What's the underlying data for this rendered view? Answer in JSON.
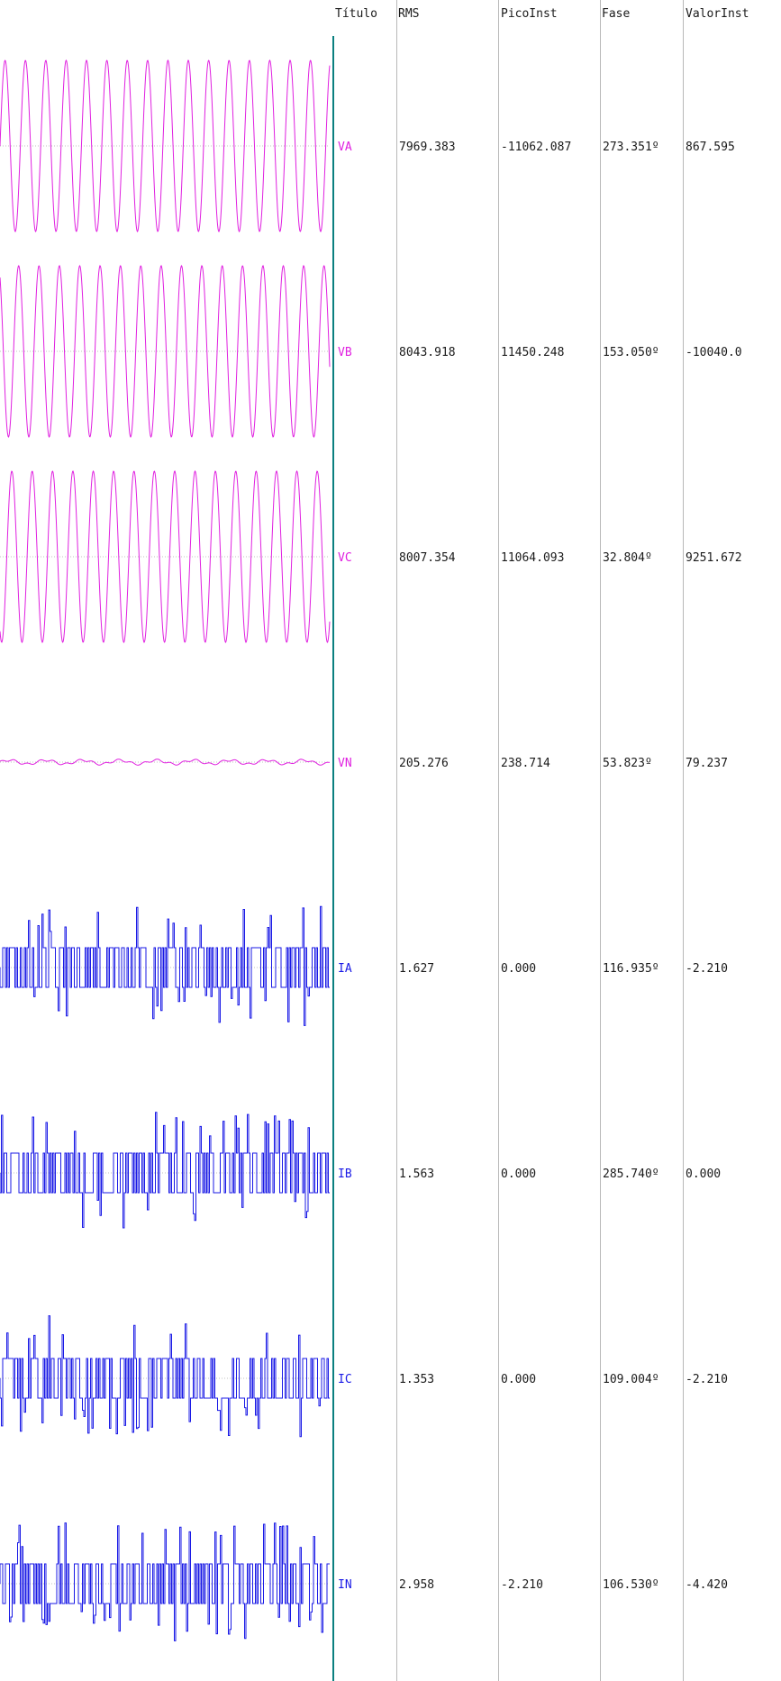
{
  "headers": {
    "titulo": "Título",
    "rms": "RMS",
    "pico_inst": "PicoInst",
    "fase": "Fase",
    "valor_inst": "ValorInst"
  },
  "colors": {
    "voltage": "#e020e0",
    "current": "#1a1ae6",
    "cursor": "#0b8080",
    "divider": "#b8b8b8",
    "zero_line": "#c0c0c0"
  },
  "channels": [
    {
      "title": "VA",
      "rms": "7969.383",
      "pico_inst": "-11062.087",
      "fase": "273.351º",
      "valor_inst": "867.595",
      "kind": "voltage",
      "icon": "sine-wave"
    },
    {
      "title": "VB",
      "rms": "8043.918",
      "pico_inst": "11450.248",
      "fase": "153.050º",
      "valor_inst": "-10040.0",
      "kind": "voltage",
      "icon": "sine-wave"
    },
    {
      "title": "VC",
      "rms": "8007.354",
      "pico_inst": "11064.093",
      "fase": "32.804º",
      "valor_inst": "9251.672",
      "kind": "voltage",
      "icon": "sine-wave"
    },
    {
      "title": "VN",
      "rms": "205.276",
      "pico_inst": "238.714",
      "fase": "53.823º",
      "valor_inst": "79.237",
      "kind": "voltage",
      "icon": "noise-wave"
    },
    {
      "title": "IA",
      "rms": "1.627",
      "pico_inst": "0.000",
      "fase": "116.935º",
      "valor_inst": "-2.210",
      "kind": "current",
      "icon": "square-noise-wave"
    },
    {
      "title": "IB",
      "rms": "1.563",
      "pico_inst": "0.000",
      "fase": "285.740º",
      "valor_inst": "0.000",
      "kind": "current",
      "icon": "square-noise-wave"
    },
    {
      "title": "IC",
      "rms": "1.353",
      "pico_inst": "0.000",
      "fase": "109.004º",
      "valor_inst": "-2.210",
      "kind": "current",
      "icon": "square-noise-wave"
    },
    {
      "title": "IN",
      "rms": "2.958",
      "pico_inst": "-2.210",
      "fase": "106.530º",
      "valor_inst": "-4.420",
      "kind": "current",
      "icon": "square-noise-wave"
    }
  ]
}
